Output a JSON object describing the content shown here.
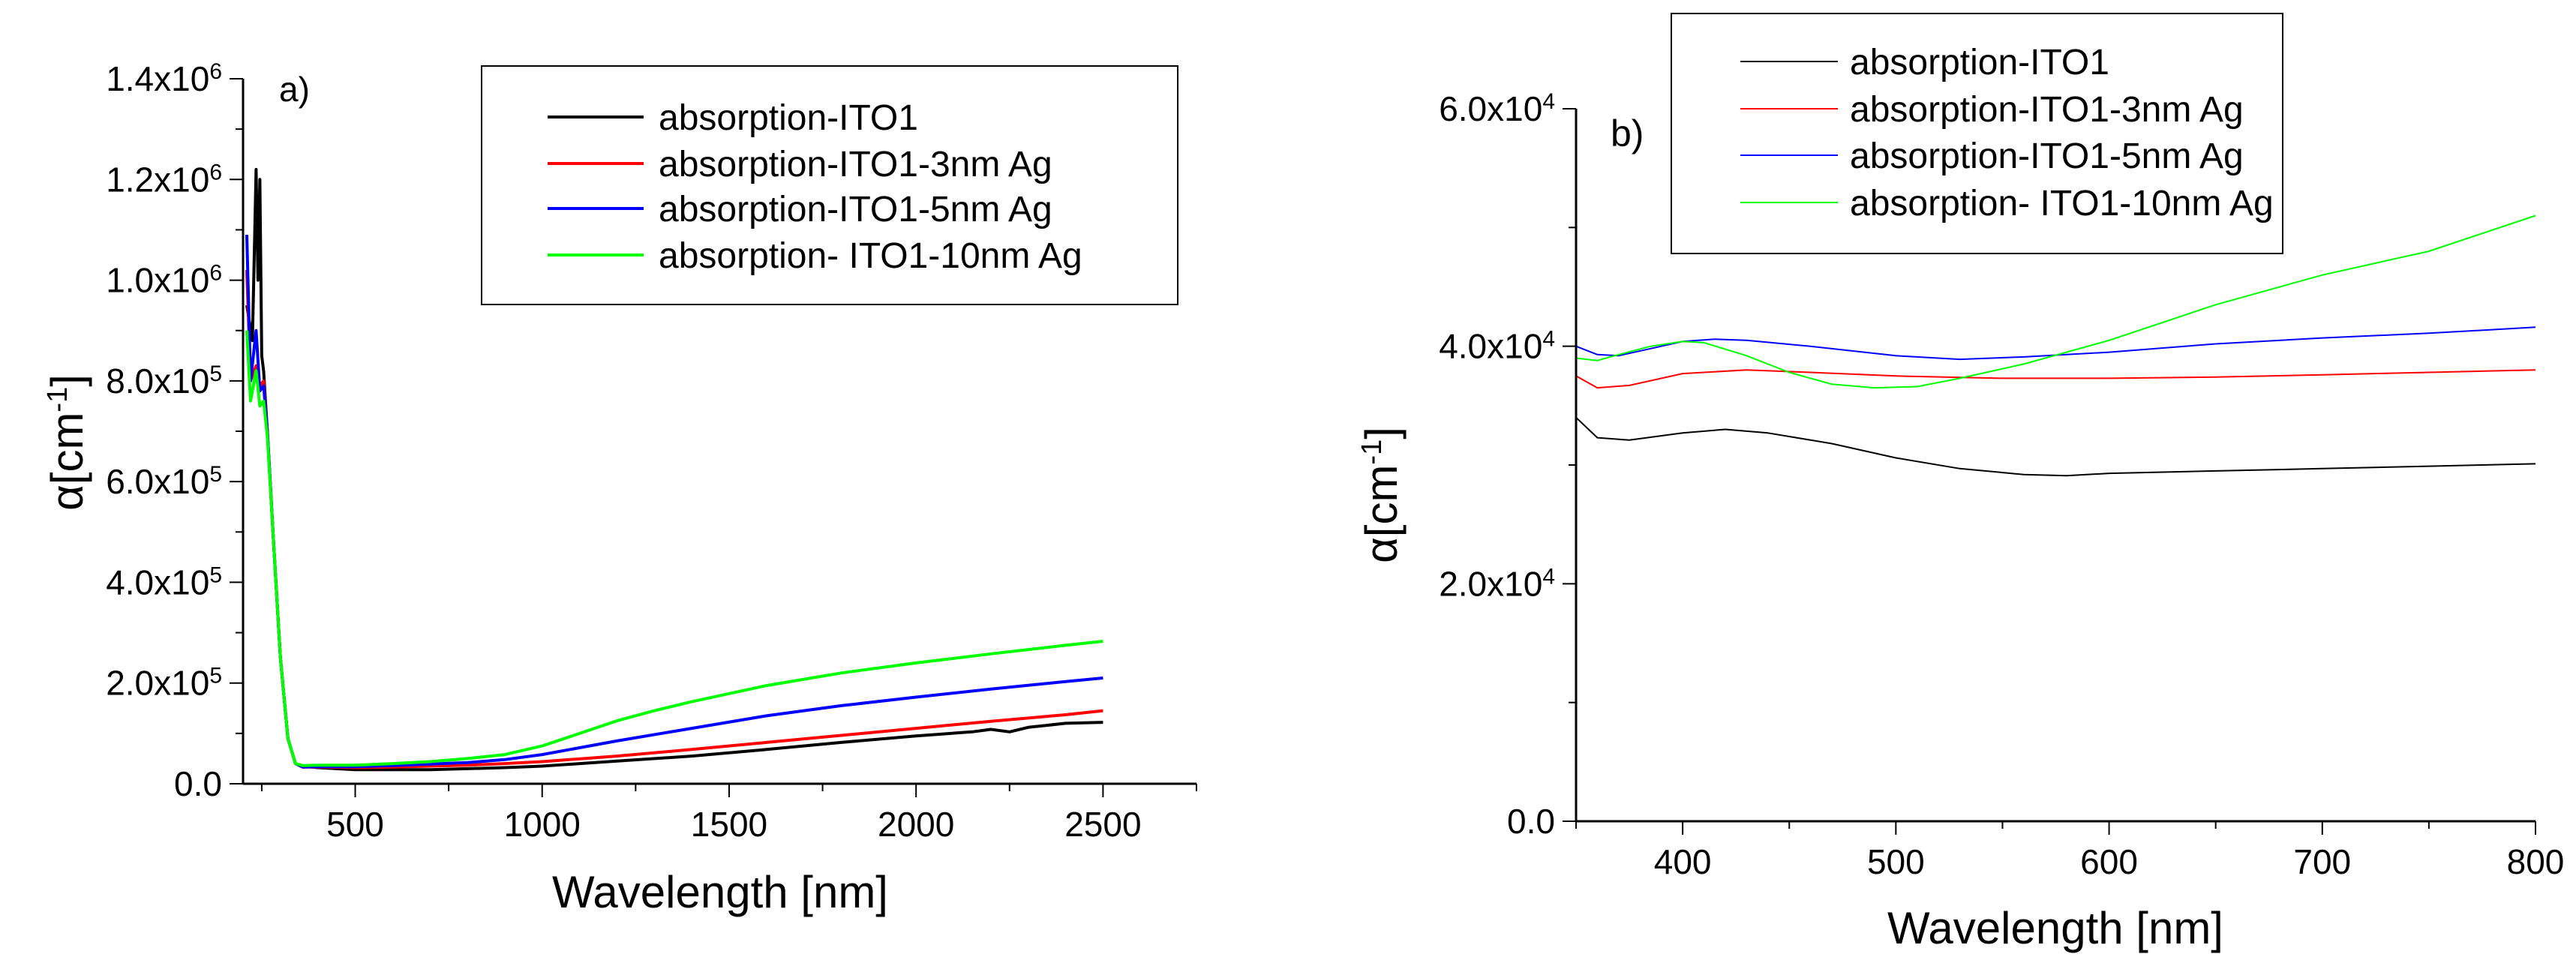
{
  "chart_data": [
    {
      "type": "line",
      "panel_label": "a)",
      "xlabel": "Wavelength [nm]",
      "ylabel": "α[cm",
      "ylabel_sup": "-1",
      "xlim": [
        200,
        2750
      ],
      "ylim": [
        0,
        1400000
      ],
      "xticks": [
        500,
        1000,
        1500,
        2000,
        2500
      ],
      "xtick_labels": [
        "500",
        "1000",
        "1500",
        "2000",
        "2500"
      ],
      "yticks": [
        0,
        200000,
        400000,
        600000,
        800000,
        1000000,
        1200000,
        1400000
      ],
      "ytick_labels": [
        {
          "base": "0.0",
          "exp": ""
        },
        {
          "base": "2.0x10",
          "exp": "5"
        },
        {
          "base": "4.0x10",
          "exp": "5"
        },
        {
          "base": "6.0x10",
          "exp": "5"
        },
        {
          "base": "8.0x10",
          "exp": "5"
        },
        {
          "base": "1.0x10",
          "exp": "6"
        },
        {
          "base": "1.2x10",
          "exp": "6"
        },
        {
          "base": "1.4x10",
          "exp": "6"
        }
      ],
      "legend_position": "top-right",
      "series": [
        {
          "name": "absorption-ITO1",
          "color": "#000000",
          "x": [
            210,
            225,
            235,
            240,
            245,
            250,
            255,
            265,
            280,
            300,
            320,
            340,
            360,
            400,
            500,
            600,
            700,
            800,
            900,
            1000,
            1200,
            1400,
            1600,
            1800,
            2000,
            2150,
            2200,
            2250,
            2300,
            2400,
            2500
          ],
          "y": [
            950000,
            880000,
            1220000,
            1000000,
            1200000,
            850000,
            820000,
            700000,
            500000,
            250000,
            90000,
            40000,
            35000,
            32000,
            28000,
            28000,
            28000,
            30000,
            32000,
            35000,
            45000,
            55000,
            68000,
            82000,
            95000,
            103000,
            108000,
            103000,
            112000,
            120000,
            122000
          ]
        },
        {
          "name": "absorption-ITO1-3nm Ag",
          "color": "#ff0000",
          "x": [
            210,
            220,
            235,
            245,
            255,
            265,
            280,
            300,
            320,
            340,
            360,
            400,
            500,
            600,
            700,
            800,
            900,
            1000,
            1200,
            1400,
            1600,
            1800,
            2000,
            2200,
            2400,
            2500
          ],
          "y": [
            1020000,
            800000,
            830000,
            790000,
            800000,
            700000,
            500000,
            250000,
            90000,
            40000,
            33000,
            33000,
            32000,
            33000,
            35000,
            37000,
            40000,
            44000,
            55000,
            68000,
            82000,
            96000,
            110000,
            124000,
            137000,
            145000
          ]
        },
        {
          "name": "absorption-ITO1-5nm Ag",
          "color": "#0000ff",
          "x": [
            210,
            220,
            235,
            245,
            255,
            265,
            280,
            300,
            320,
            340,
            360,
            400,
            500,
            600,
            700,
            800,
            900,
            1000,
            1200,
            1400,
            1600,
            1800,
            2000,
            2200,
            2400,
            2500
          ],
          "y": [
            1090000,
            800000,
            900000,
            780000,
            790000,
            700000,
            500000,
            250000,
            90000,
            40000,
            33000,
            34000,
            34000,
            36000,
            39000,
            42000,
            48000,
            58000,
            85000,
            110000,
            135000,
            155000,
            172000,
            188000,
            203000,
            210000
          ]
        },
        {
          "name": "absorption- ITO1-10nm Ag",
          "color": "#00ff00",
          "x": [
            210,
            220,
            235,
            245,
            255,
            265,
            280,
            300,
            320,
            340,
            360,
            400,
            500,
            600,
            700,
            800,
            900,
            1000,
            1100,
            1200,
            1300,
            1400,
            1600,
            1800,
            2000,
            2200,
            2400,
            2500
          ],
          "y": [
            900000,
            760000,
            820000,
            750000,
            760000,
            690000,
            500000,
            250000,
            90000,
            40000,
            36000,
            37000,
            37000,
            40000,
            44000,
            50000,
            58000,
            75000,
            100000,
            125000,
            145000,
            163000,
            195000,
            220000,
            240000,
            258000,
            275000,
            283000
          ]
        }
      ]
    },
    {
      "type": "line",
      "panel_label": "b)",
      "xlabel": "Wavelength [nm]",
      "ylabel": "α[cm",
      "ylabel_sup": "-1",
      "xlim": [
        350,
        800
      ],
      "ylim": [
        0,
        60000
      ],
      "xticks": [
        400,
        500,
        600,
        700,
        800
      ],
      "xtick_labels": [
        "400",
        "500",
        "600",
        "700",
        "800"
      ],
      "yticks": [
        0,
        20000,
        40000,
        60000
      ],
      "ytick_labels": [
        {
          "base": "0.0",
          "exp": ""
        },
        {
          "base": "2.0x10",
          "exp": "4"
        },
        {
          "base": "4.0x10",
          "exp": "4"
        },
        {
          "base": "6.0x10",
          "exp": "4"
        }
      ],
      "legend_position": "top-left",
      "series": [
        {
          "name": "absorption-ITO1",
          "color": "#000000",
          "x": [
            350,
            360,
            375,
            400,
            420,
            440,
            470,
            500,
            530,
            560,
            580,
            600,
            650,
            700,
            750,
            800
          ],
          "y": [
            34000,
            32300,
            32100,
            32700,
            33000,
            32700,
            31800,
            30600,
            29700,
            29200,
            29100,
            29300,
            29500,
            29700,
            29900,
            30100
          ]
        },
        {
          "name": "absorption-ITO1-3nm Ag",
          "color": "#ff0000",
          "x": [
            350,
            360,
            375,
            400,
            430,
            460,
            500,
            550,
            600,
            650,
            700,
            750,
            800
          ],
          "y": [
            37500,
            36500,
            36700,
            37700,
            38000,
            37800,
            37500,
            37300,
            37300,
            37400,
            37600,
            37800,
            38000
          ]
        },
        {
          "name": "absorption-ITO1-5nm Ag",
          "color": "#0000ff",
          "x": [
            350,
            360,
            370,
            385,
            400,
            415,
            430,
            460,
            500,
            530,
            560,
            600,
            650,
            700,
            750,
            800
          ],
          "y": [
            40000,
            39300,
            39200,
            39800,
            40400,
            40600,
            40500,
            40000,
            39200,
            38900,
            39100,
            39500,
            40200,
            40700,
            41100,
            41600
          ]
        },
        {
          "name": "absorption- ITO1-10nm Ag",
          "color": "#00ff00",
          "x": [
            350,
            360,
            370,
            385,
            400,
            410,
            430,
            450,
            470,
            490,
            510,
            530,
            560,
            600,
            650,
            700,
            750,
            800
          ],
          "y": [
            39000,
            38800,
            39300,
            40000,
            40400,
            40300,
            39200,
            37800,
            36800,
            36500,
            36600,
            37300,
            38500,
            40500,
            43500,
            46000,
            48000,
            51000
          ]
        }
      ]
    }
  ]
}
